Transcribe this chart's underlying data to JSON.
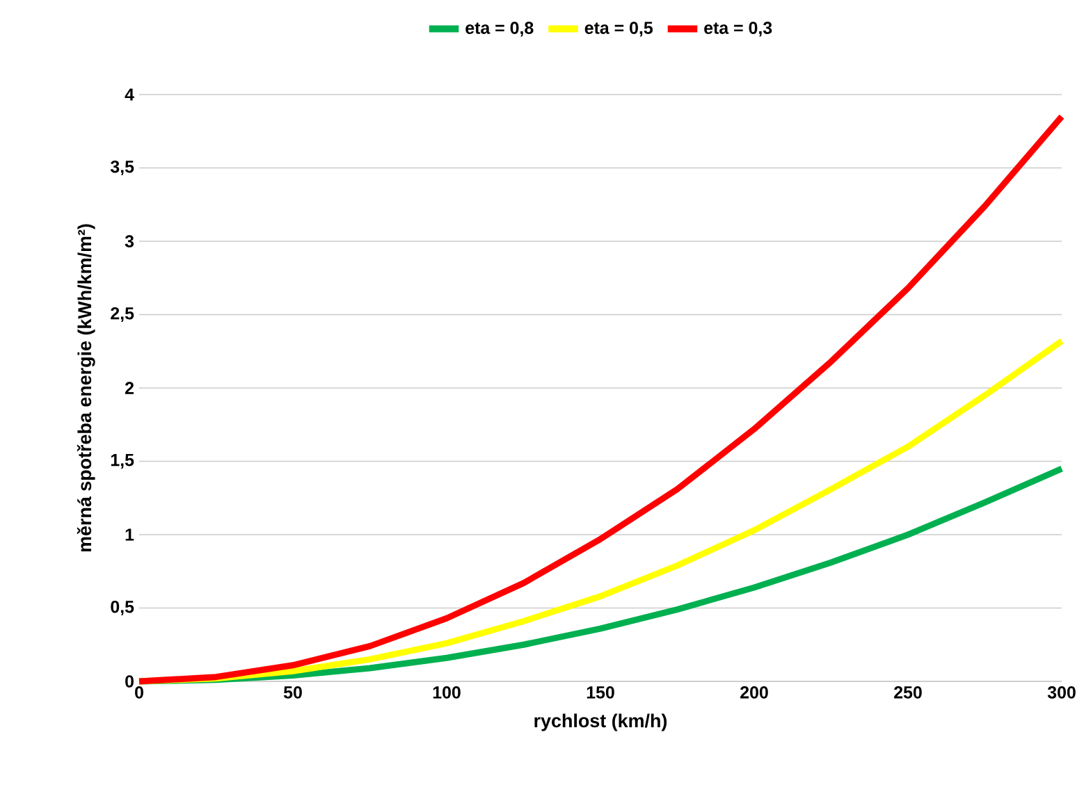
{
  "chart_data": {
    "type": "line",
    "xlabel": "rychlost (km/h)",
    "ylabel": "měrná spotřeba energie (kWh/km/m²)",
    "x": [
      0,
      25,
      50,
      75,
      100,
      125,
      150,
      175,
      200,
      225,
      250,
      275,
      300
    ],
    "series": [
      {
        "name": "eta = 0,8",
        "color": "#00b050",
        "values": [
          0,
          0.01,
          0.04,
          0.09,
          0.16,
          0.25,
          0.36,
          0.49,
          0.64,
          0.81,
          1.0,
          1.22,
          1.45
        ]
      },
      {
        "name": "eta = 0,5",
        "color": "#ffff00",
        "values": [
          0,
          0.02,
          0.07,
          0.15,
          0.26,
          0.41,
          0.58,
          0.79,
          1.03,
          1.31,
          1.6,
          1.95,
          2.32
        ]
      },
      {
        "name": "eta = 0,3",
        "color": "#ff0000",
        "values": [
          0,
          0.03,
          0.11,
          0.24,
          0.43,
          0.67,
          0.97,
          1.31,
          1.72,
          2.18,
          2.68,
          3.24,
          3.85
        ]
      }
    ],
    "xlim": [
      0,
      300
    ],
    "xticks": [
      0,
      50,
      100,
      150,
      200,
      250,
      300
    ],
    "ylim": [
      0,
      4
    ],
    "yticks": [
      0,
      {
        "value": 0.5,
        "label": "0,5"
      },
      1,
      {
        "value": 1.5,
        "label": "1,5"
      },
      2,
      {
        "value": 2.5,
        "label": "2,5"
      },
      3,
      {
        "value": 3.5,
        "label": "3,5"
      },
      4
    ],
    "grid": "y",
    "legend": "top",
    "marker": "none",
    "line_style": "solid"
  }
}
